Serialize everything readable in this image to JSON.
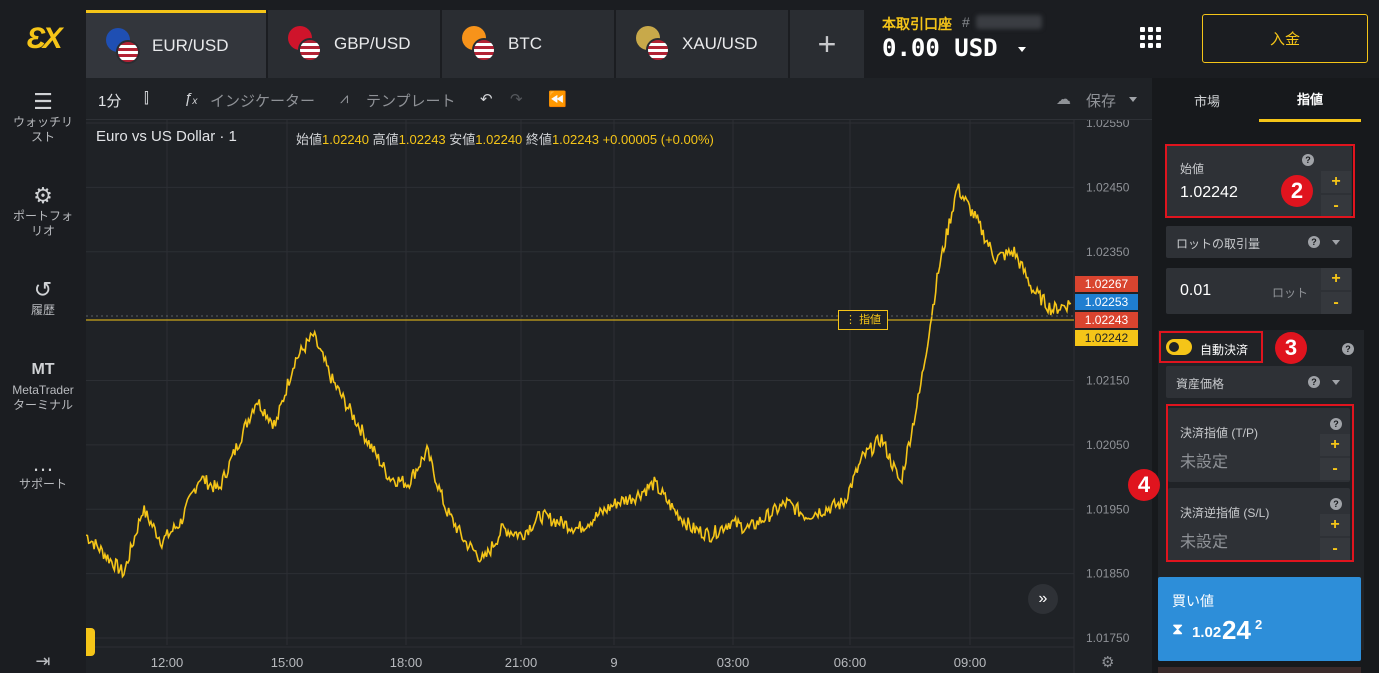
{
  "logo": "ƐX",
  "tabs": [
    {
      "label": "EUR/USD",
      "active": true,
      "flag1": "#1f4fb3",
      "flag2": "#b22234"
    },
    {
      "label": "GBP/USD",
      "active": false,
      "flag1": "#cf142b",
      "flag2": "#b22234"
    },
    {
      "label": "BTC",
      "active": false,
      "flag1": "#f7931a",
      "flag2": "#b22234"
    },
    {
      "label": "XAU/USD",
      "active": false,
      "flag1": "#c8a94a",
      "flag2": "#b22234"
    }
  ],
  "add_tab": "+",
  "account": {
    "label": "本取引口座",
    "hash": "#",
    "balance": "0.00 USD"
  },
  "deposit": "入金",
  "sidebar": [
    {
      "icon": "☰",
      "label": "ウォッチリスト"
    },
    {
      "icon": "⚙",
      "label": "ポートフォリオ"
    },
    {
      "icon": "↺",
      "label": "履歴"
    },
    {
      "icon": "MT",
      "label": "MetaTrader ターミナル"
    },
    {
      "icon": "…",
      "label": "サポート"
    }
  ],
  "toolbar": {
    "timeframe": "1分",
    "indicator": "インジケーター",
    "template": "テンプレート",
    "save": "保存"
  },
  "chart_header": {
    "symbol": "Euro vs US Dollar · 1",
    "o_label": "始値",
    "o": "1.02240",
    "h_label": "高値",
    "h": "1.02243",
    "l_label": "安値",
    "l": "1.02240",
    "c_label": "終値",
    "c": "1.02243",
    "chg": "+0.00005 (+0.00%)"
  },
  "order_line_label": "指値",
  "price_tags": [
    {
      "value": "1.02267",
      "color": "#d9442f"
    },
    {
      "value": "1.02253",
      "color": "#1f7ed0"
    },
    {
      "value": "1.02243",
      "color": "#d9442f"
    },
    {
      "value": "1.02242",
      "color": "#f5c518"
    }
  ],
  "chart_data": {
    "type": "line",
    "color": "#f5c518",
    "y_ticks": [
      "1.02550",
      "1.02450",
      "1.02350",
      "1.02150",
      "1.02050",
      "1.01950",
      "1.01850",
      "1.01750"
    ],
    "x_ticks": [
      "12:00",
      "15:00",
      "18:00",
      "21:00",
      "9",
      "03:00",
      "06:00",
      "09:00"
    ],
    "ylim": [
      1.0175,
      1.0255
    ],
    "series": [
      {
        "values": [
          1.0191,
          1.0188,
          1.0185,
          1.0195,
          1.019,
          1.0193,
          1.02,
          1.0198,
          1.0205,
          1.0212,
          1.0208,
          1.0218,
          1.0222,
          1.0215,
          1.021,
          1.0205,
          1.02,
          1.0199,
          1.0204,
          1.0195,
          1.019,
          1.0187,
          1.0192,
          1.0191,
          1.0194,
          1.0193,
          1.0192,
          1.0194,
          1.0196,
          1.0197,
          1.0199,
          1.0195,
          1.0192,
          1.0191,
          1.0193,
          1.0192,
          1.0194,
          1.0196,
          1.0194,
          1.0195,
          1.0196,
          1.0203,
          1.0206,
          1.0199,
          1.0213,
          1.0232,
          1.0245,
          1.024,
          1.0234,
          1.0235,
          1.0229,
          1.0226,
          1.0227
        ]
      }
    ]
  },
  "right_panel": {
    "tab_market": "市場",
    "tab_limit": "指値",
    "open_price_label": "始値",
    "open_price": "1.02242",
    "lot_select": "ロットの取引量",
    "lot_value": "0.01",
    "lot_unit": "ロット",
    "auto_close": "自動決済",
    "asset_price": "資産価格",
    "tp_label": "決済指値 (T/P)",
    "tp_value": "未設定",
    "sl_label": "決済逆指値 (S/L)",
    "sl_value": "未設定",
    "buy_label": "買い値",
    "buy_price_small": "1.02",
    "buy_price_big": "24",
    "buy_price_sup": "2",
    "plus": "+",
    "minus": "-",
    "help": "?"
  },
  "badges": [
    "2",
    "3",
    "4"
  ]
}
